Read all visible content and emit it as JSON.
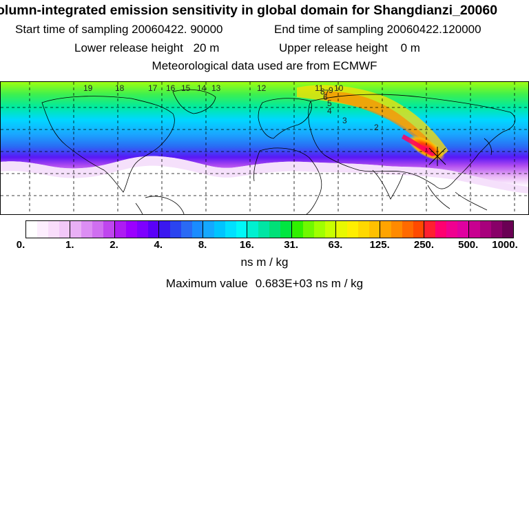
{
  "header": {
    "title": "olumn-integrated emission sensitivity in global domain for Shangdianzi_20060",
    "start_label": "Start time of sampling",
    "start_value": "20060422. 90000",
    "end_label": "End time of sampling",
    "end_value": "20060422.120000",
    "lower_label": "Lower release height",
    "lower_value": "20 m",
    "upper_label": "Upper release height",
    "upper_value": "0 m",
    "met_line": "Meteorological data used are from ECMWF"
  },
  "chart_data": {
    "type": "heatmap",
    "title": "olumn-integrated emission sensitivity in global domain for Shangdianzi_20060",
    "colorbar": {
      "ticks": [
        "0.",
        "1.",
        "2.",
        "4.",
        "8.",
        "16.",
        "31.",
        "63.",
        "125.",
        "250.",
        "500.",
        "1000."
      ],
      "colors": [
        "#ffffff",
        "#fdeefe",
        "#f9ddfb",
        "#f2c8f8",
        "#e9b0f5",
        "#dc8ef3",
        "#cf6ff0",
        "#bf46ee",
        "#ad1cf2",
        "#9b00ff",
        "#7e00ff",
        "#5a00f8",
        "#3a18f0",
        "#2a44f0",
        "#2a6af4",
        "#1a8cff",
        "#14a8ff",
        "#00c4ff",
        "#00e0ff",
        "#00f8f8",
        "#00f0d0",
        "#00e6a4",
        "#00e078",
        "#00e640",
        "#30f000",
        "#70f800",
        "#a0ff00",
        "#c8ff00",
        "#e8f800",
        "#ffee00",
        "#ffd800",
        "#ffc000",
        "#ffa400",
        "#ff8a00",
        "#ff6a00",
        "#ff4a00",
        "#ff2030",
        "#ff0070",
        "#f00090",
        "#e000a0",
        "#c80090",
        "#a8007c",
        "#880068",
        "#6a0054"
      ],
      "unit": "ns m / kg",
      "maximum_label": "Maximum value",
      "maximum_value": "0.683E+03 ns m / kg"
    },
    "trajectory_labels": [
      "19",
      "18",
      "17",
      "16",
      "15",
      "14",
      "13",
      "12",
      "11",
      "10",
      "9",
      "8",
      "7",
      "6",
      "5",
      "4",
      "3",
      "2"
    ],
    "release_location": "Shangdianzi"
  }
}
